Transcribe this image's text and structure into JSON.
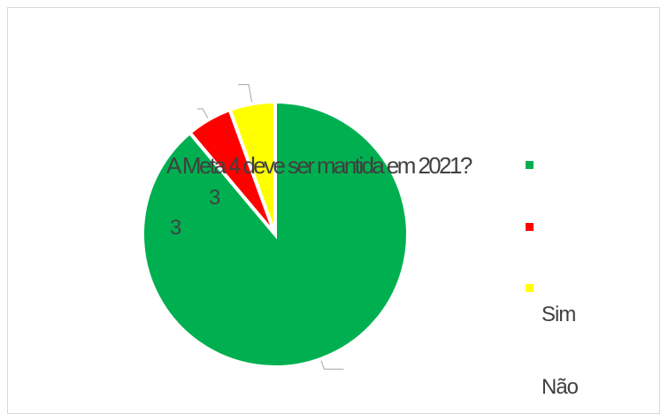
{
  "chart_data": {
    "type": "pie",
    "title": "A Meta 4 deve ser mantida em 2021?",
    "categories": [
      "Sim",
      "Não",
      ""
    ],
    "values": [
      48,
      3,
      3
    ],
    "data_labels": [
      "",
      "3",
      "3"
    ],
    "colors": [
      "#00b050",
      "#ff0000",
      "#ffff00"
    ],
    "legend": {
      "position": "right",
      "entries": [
        "Sim",
        "Não"
      ]
    }
  }
}
